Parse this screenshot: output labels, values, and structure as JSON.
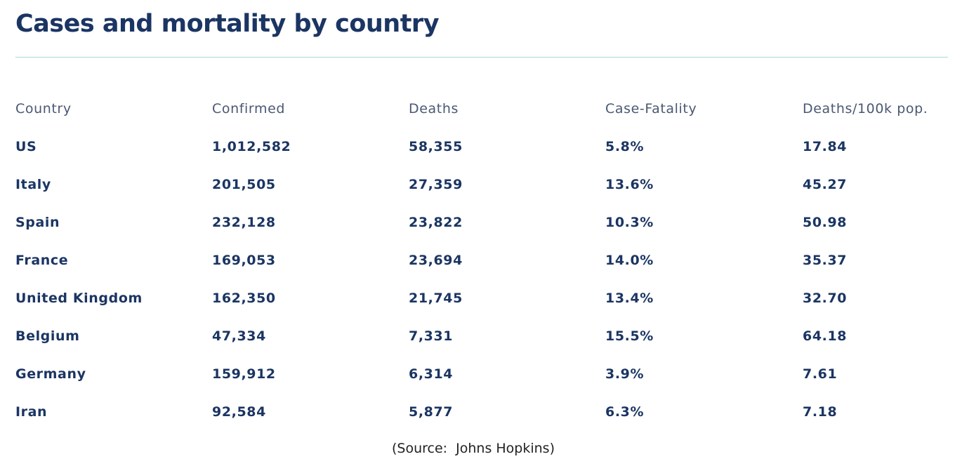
{
  "title": "Cases and mortality by country",
  "table": {
    "headers": [
      "Country",
      "Confirmed",
      "Deaths",
      "Case-Fatality",
      "Deaths/100k pop."
    ],
    "rows": [
      [
        "US",
        "1,012,582",
        "58,355",
        "5.8%",
        "17.84"
      ],
      [
        "Italy",
        "201,505",
        "27,359",
        "13.6%",
        "45.27"
      ],
      [
        "Spain",
        "232,128",
        "23,822",
        "10.3%",
        "50.98"
      ],
      [
        "France",
        "169,053",
        "23,694",
        "14.0%",
        "35.37"
      ],
      [
        "United Kingdom",
        "162,350",
        "21,745",
        "13.4%",
        "32.70"
      ],
      [
        "Belgium",
        "47,334",
        "7,331",
        "15.5%",
        "64.18"
      ],
      [
        "Germany",
        "159,912",
        "6,314",
        "3.9%",
        "7.61"
      ],
      [
        "Iran",
        "92,584",
        "5,877",
        "6.3%",
        "7.18"
      ]
    ]
  },
  "source": "(Source:  Johns Hopkins)",
  "colors": {
    "title": "#1b3563",
    "header_text": "#4a5872",
    "cell_text": "#1b3563",
    "rule": "#a9d6e3"
  }
}
